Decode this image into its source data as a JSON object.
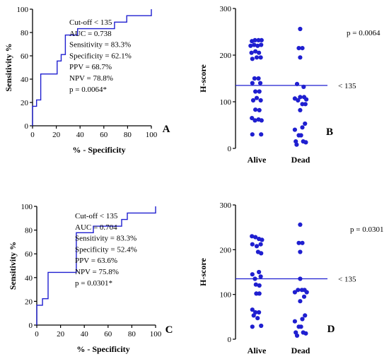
{
  "figure": {
    "panels": [
      "A",
      "B",
      "C",
      "D"
    ]
  },
  "chart_data": [
    {
      "id": "A",
      "type": "line",
      "panel_label": "A",
      "xlabel": "% - Specificity",
      "ylabel": "Sensitivity %",
      "xlim": [
        0,
        100
      ],
      "ylim": [
        0,
        100
      ],
      "xticks": [
        0,
        20,
        40,
        60,
        80,
        100
      ],
      "yticks": [
        0,
        20,
        40,
        60,
        80,
        100
      ],
      "grid": false,
      "series": [
        {
          "x": [
            0,
            0,
            3.4,
            3.4,
            6.9,
            6.9,
            20.7,
            20.7,
            24.1,
            24.1,
            27.6,
            27.6,
            37.9,
            37.9,
            69,
            69,
            79.3,
            79.3,
            100,
            100
          ],
          "y": [
            0,
            16.7,
            16.7,
            22.2,
            22.2,
            44.4,
            44.4,
            55.6,
            55.6,
            61.1,
            61.1,
            77.8,
            77.8,
            83.3,
            83.3,
            88.9,
            88.9,
            94.4,
            94.4,
            100
          ]
        }
      ],
      "stats": [
        "Cut-off < 135",
        "AUC = 0.738",
        "Sensitivity = 83.3%",
        "Specificity = 62.1%",
        "PPV = 68.7%",
        "NPV = 78.8%",
        "p = 0.0064*"
      ]
    },
    {
      "id": "B",
      "type": "scatter",
      "panel_label": "B",
      "ylabel": "H-score",
      "categories": [
        "Alive",
        "Dead"
      ],
      "ylim": [
        0,
        300
      ],
      "yticks": [
        0,
        100,
        200,
        300
      ],
      "grid": false,
      "color": "#1f1fd0",
      "cutoff_line": {
        "value": 135,
        "label": "< 135"
      },
      "p_value": "p = 0.0064",
      "series": [
        {
          "category": "Alive",
          "points": [
            [
              -0.11,
              230
            ],
            [
              -0.04,
              232
            ],
            [
              0.04,
              232
            ],
            [
              0.11,
              232
            ],
            [
              -0.14,
              220
            ],
            [
              -0.06,
              222
            ],
            [
              0.02,
              220
            ],
            [
              0.1,
              222
            ],
            [
              -0.12,
              205
            ],
            [
              -0.03,
              208
            ],
            [
              0.05,
              205
            ],
            [
              -0.1,
              192
            ],
            [
              0.0,
              195
            ],
            [
              0.09,
              195
            ],
            [
              -0.05,
              150
            ],
            [
              0.04,
              150
            ],
            [
              -0.1,
              140
            ],
            [
              0.08,
              140
            ],
            [
              -0.03,
              122
            ],
            [
              0.06,
              122
            ],
            [
              0.0,
              108
            ],
            [
              -0.08,
              103
            ],
            [
              0.09,
              103
            ],
            [
              -0.03,
              83
            ],
            [
              0.06,
              82
            ],
            [
              -0.11,
              65
            ],
            [
              -0.04,
              60
            ],
            [
              0.04,
              62
            ],
            [
              0.11,
              60
            ],
            [
              -0.1,
              30
            ],
            [
              0.1,
              30
            ]
          ]
        },
        {
          "category": "Dead",
          "points": [
            [
              -0.01,
              256
            ],
            [
              -0.04,
              215
            ],
            [
              0.04,
              215
            ],
            [
              -0.01,
              195
            ],
            [
              -0.08,
              138
            ],
            [
              0.07,
              132
            ],
            [
              -0.01,
              110
            ],
            [
              0.08,
              110
            ],
            [
              0.13,
              105
            ],
            [
              -0.13,
              107
            ],
            [
              -0.06,
              103
            ],
            [
              0.04,
              95
            ],
            [
              0.11,
              95
            ],
            [
              -0.01,
              82
            ],
            [
              0.1,
              53
            ],
            [
              0.04,
              45
            ],
            [
              -0.13,
              40
            ],
            [
              -0.04,
              28
            ],
            [
              0.01,
              28
            ],
            [
              -0.11,
              15
            ],
            [
              0.06,
              15
            ],
            [
              0.12,
              13
            ],
            [
              -0.09,
              8
            ]
          ]
        }
      ]
    },
    {
      "id": "C",
      "type": "line",
      "panel_label": "C",
      "xlabel": "% - Specificity",
      "ylabel": "Sensitivity %",
      "xlim": [
        0,
        100
      ],
      "ylim": [
        0,
        100
      ],
      "xticks": [
        0,
        20,
        40,
        60,
        80,
        100
      ],
      "yticks": [
        0,
        20,
        40,
        60,
        80,
        100
      ],
      "grid": false,
      "series": [
        {
          "x": [
            0,
            0,
            4.8,
            4.8,
            9.5,
            9.5,
            33.3,
            33.3,
            47.6,
            47.6,
            71.4,
            71.4,
            76.2,
            76.2,
            100,
            100
          ],
          "y": [
            0,
            16.7,
            16.7,
            22.2,
            22.2,
            44.4,
            44.4,
            77.8,
            77.8,
            83.3,
            83.3,
            88.9,
            88.9,
            94.4,
            94.4,
            100
          ]
        }
      ],
      "stats": [
        "Cut-off < 135",
        "AUC = 0.704",
        "Sensitivity = 83.3%",
        "Specificity = 52.4%",
        "PPV = 63.6%",
        "NPV = 75.8%",
        "p = 0.0301*"
      ]
    },
    {
      "id": "D",
      "type": "scatter",
      "panel_label": "D",
      "ylabel": "H-score",
      "categories": [
        "Alive",
        "Dead"
      ],
      "ylim": [
        0,
        300
      ],
      "yticks": [
        0,
        100,
        200,
        300
      ],
      "grid": false,
      "color": "#1f1fd0",
      "cutoff_line": {
        "value": 135,
        "label": "< 135"
      },
      "p_value": "p = 0.0301",
      "series": [
        {
          "category": "Alive",
          "points": [
            [
              -0.11,
              230
            ],
            [
              -0.03,
              228
            ],
            [
              0.05,
              224
            ],
            [
              0.12,
              222
            ],
            [
              -0.1,
              212
            ],
            [
              0.0,
              208
            ],
            [
              0.09,
              212
            ],
            [
              0.03,
              195
            ],
            [
              0.1,
              192
            ],
            [
              -0.1,
              145
            ],
            [
              0.05,
              150
            ],
            [
              -0.04,
              135
            ],
            [
              0.09,
              140
            ],
            [
              -0.02,
              122
            ],
            [
              0.06,
              120
            ],
            [
              -0.01,
              102
            ],
            [
              0.06,
              102
            ],
            [
              -0.1,
              66
            ],
            [
              -0.03,
              60
            ],
            [
              0.05,
              60
            ],
            [
              -0.07,
              53
            ],
            [
              0.02,
              47
            ],
            [
              -0.1,
              28
            ],
            [
              0.1,
              30
            ]
          ]
        },
        {
          "category": "Dead",
          "points": [
            [
              -0.01,
              256
            ],
            [
              -0.04,
              215
            ],
            [
              0.04,
              215
            ],
            [
              -0.01,
              195
            ],
            [
              -0.01,
              135
            ],
            [
              -0.06,
              110
            ],
            [
              0.03,
              110
            ],
            [
              0.09,
              110
            ],
            [
              0.14,
              105
            ],
            [
              -0.13,
              105
            ],
            [
              0.08,
              95
            ],
            [
              -0.01,
              85
            ],
            [
              0.1,
              53
            ],
            [
              0.04,
              45
            ],
            [
              -0.13,
              40
            ],
            [
              -0.04,
              28
            ],
            [
              0.01,
              28
            ],
            [
              -0.11,
              15
            ],
            [
              0.06,
              15
            ],
            [
              0.12,
              13
            ],
            [
              -0.08,
              8
            ]
          ]
        }
      ]
    }
  ]
}
